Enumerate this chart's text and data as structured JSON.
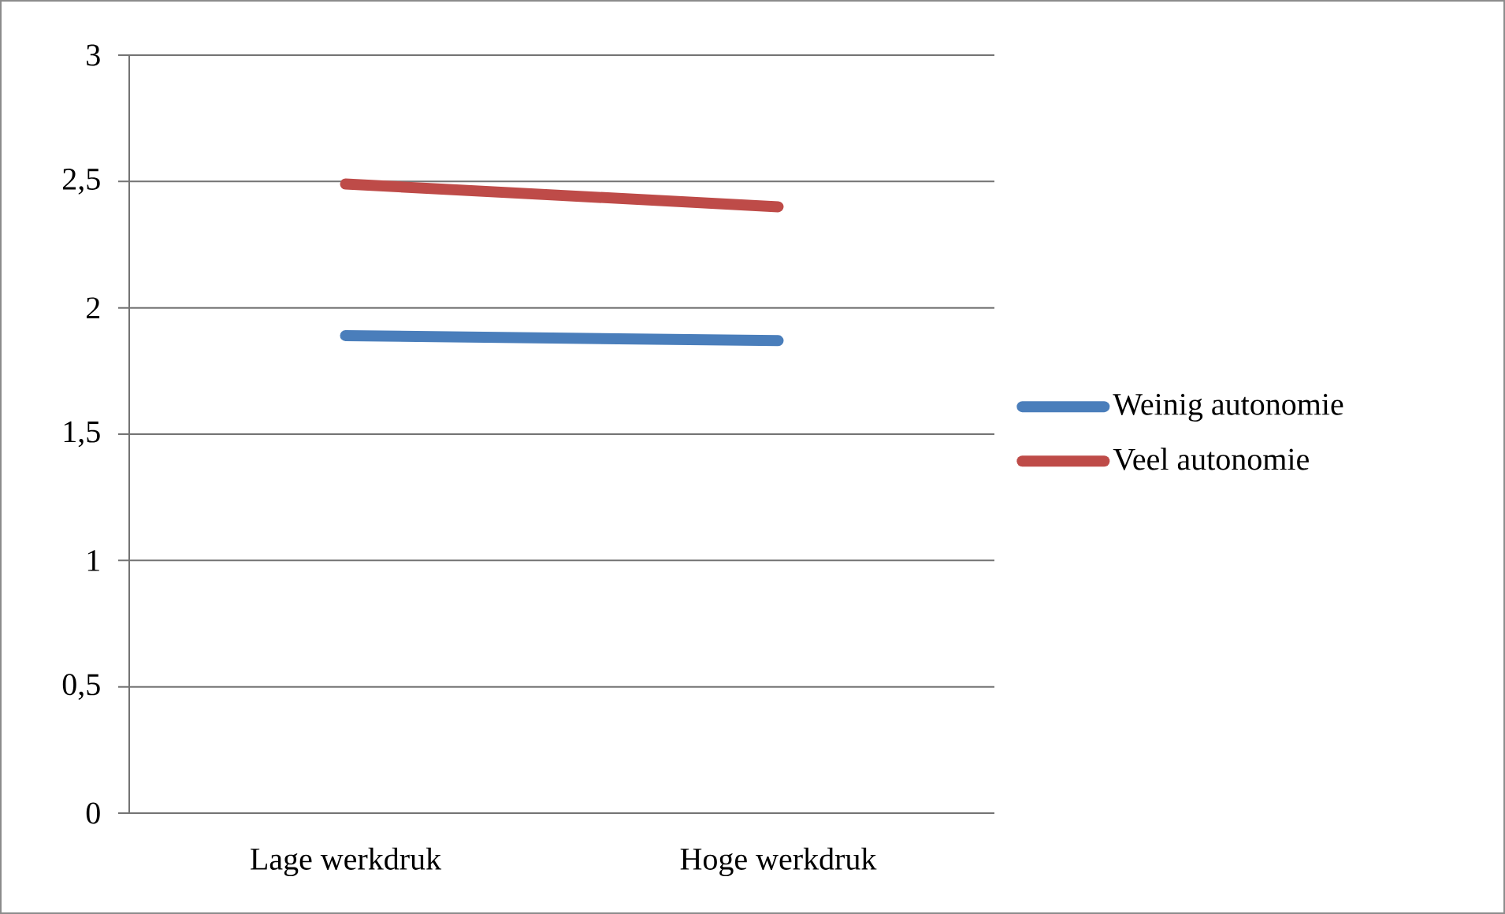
{
  "chart_data": {
    "type": "line",
    "categories": [
      "Lage werkdruk",
      "Hoge werkdruk"
    ],
    "series": [
      {
        "name": "Weinig autonomie",
        "color": "#4a7ebb",
        "values": [
          1.89,
          1.87
        ]
      },
      {
        "name": "Veel autonomie",
        "color": "#be4b48",
        "values": [
          2.49,
          2.4
        ]
      }
    ],
    "ylim": [
      0,
      3
    ],
    "yticks": [
      0,
      {
        "value": 0.5,
        "label": "0,5"
      },
      1,
      {
        "value": 1.5,
        "label": "1,5"
      },
      2,
      {
        "value": 2.5,
        "label": "2,5"
      },
      3
    ],
    "grid": "y",
    "legend": "right"
  }
}
